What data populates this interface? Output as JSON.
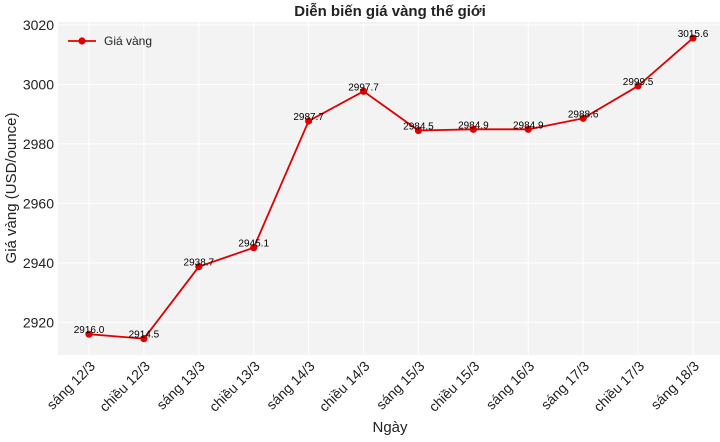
{
  "chart_data": {
    "type": "line",
    "title": "Diễn biến giá vàng thế giới",
    "xlabel": "Ngày",
    "ylabel": "Giá vàng (USD/ounce)",
    "categories": [
      "sáng 12/3",
      "chiều 12/3",
      "sáng 13/3",
      "chiều 13/3",
      "sáng 14/3",
      "chiều 14/3",
      "sáng 15/3",
      "chiều 15/3",
      "sáng 16/3",
      "sáng 17/3",
      "chiều 17/3",
      "sáng 18/3"
    ],
    "series": [
      {
        "name": "Giá vàng",
        "values": [
          2916.0,
          2914.5,
          2938.7,
          2945.1,
          2987.7,
          2997.7,
          2984.5,
          2984.9,
          2984.9,
          2988.6,
          2999.5,
          3015.6
        ],
        "value_labels": [
          "2916.0",
          "2914.5",
          "2938.7",
          "2945.1",
          "2987.7",
          "2997.7",
          "2984.5",
          "2984.9",
          "2984.9",
          "2988.6",
          "2999.5",
          "3015.6"
        ],
        "color": "#e00000"
      }
    ],
    "ylim": [
      2909,
      3021
    ],
    "yticks": [
      2920,
      2940,
      2960,
      2980,
      3000,
      3020
    ],
    "ytick_labels": [
      "2920",
      "2940",
      "2960",
      "2980",
      "3000",
      "3020"
    ],
    "grid": true,
    "legend_position": "top-left",
    "plot_background": "#f3f3f3",
    "grid_color": "#ffffff"
  }
}
